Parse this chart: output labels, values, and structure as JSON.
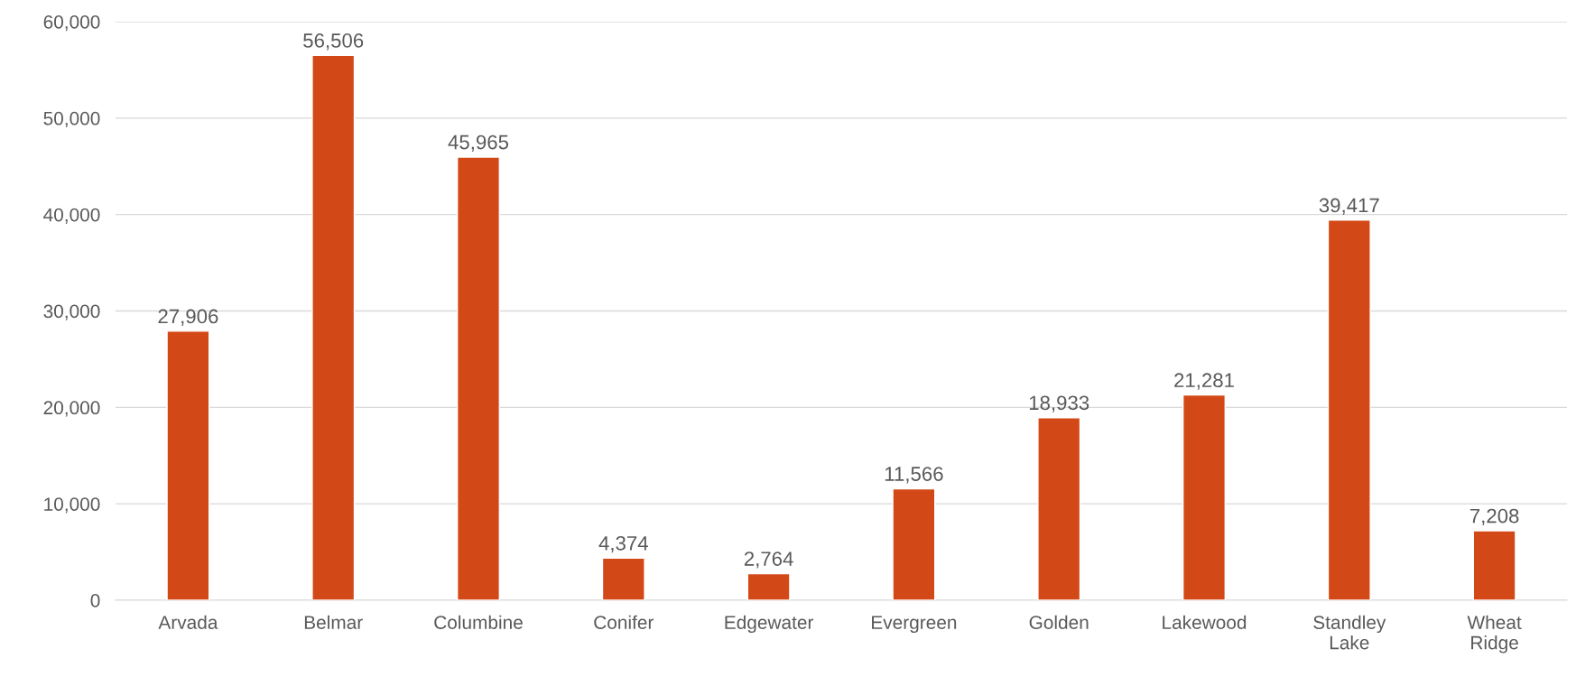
{
  "chart_data": {
    "type": "bar",
    "categories": [
      "Arvada",
      "Belmar",
      "Columbine",
      "Conifer",
      "Edgewater",
      "Evergreen",
      "Golden",
      "Lakewood",
      "Standley Lake",
      "Wheat Ridge"
    ],
    "values": [
      27906,
      56506,
      45965,
      4374,
      2764,
      11566,
      18933,
      21281,
      39417,
      7208
    ],
    "color": "#d34817",
    "ylim": [
      0,
      60000
    ],
    "yticks": [
      {
        "value": 0,
        "label": "0"
      },
      {
        "value": 10000,
        "label": "10,000"
      },
      {
        "value": 20000,
        "label": "20,000"
      },
      {
        "value": 30000,
        "label": "30,000"
      },
      {
        "value": 40000,
        "label": "40,000"
      },
      {
        "value": 50000,
        "label": "50,000"
      },
      {
        "value": 60000,
        "label": "60,000"
      }
    ],
    "value_labels": [
      "27,906",
      "56,506",
      "45,965",
      "4,374",
      "2,764",
      "11,566",
      "18,933",
      "21,281",
      "39,417",
      "7,208"
    ],
    "grid": "y",
    "legend": false
  }
}
